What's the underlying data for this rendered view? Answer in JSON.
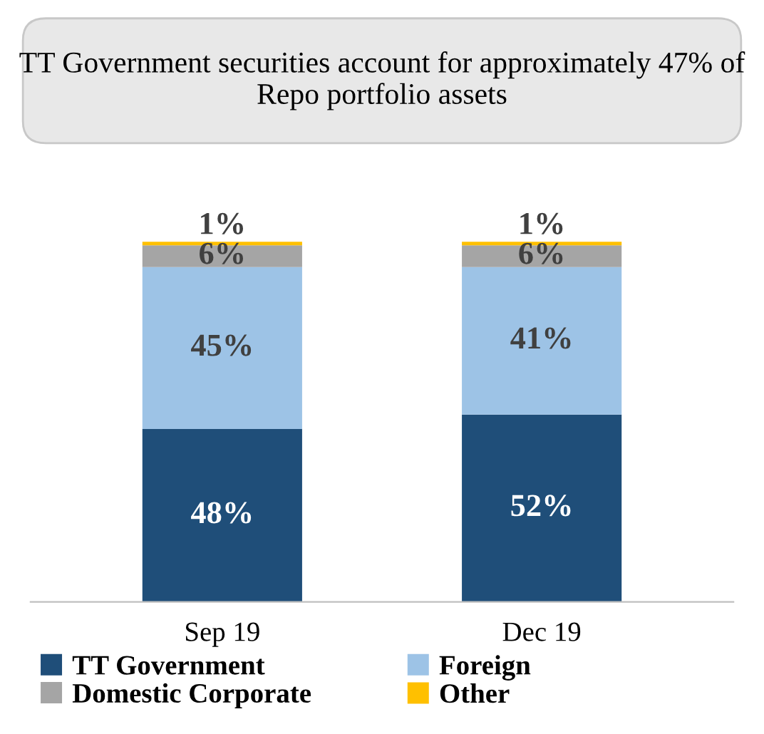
{
  "chart_data": {
    "type": "bar",
    "title": "TT Government securities account for approximately 47% of Repo portfolio assets",
    "categories": [
      "Sep 19",
      "Dec 19"
    ],
    "stacked": true,
    "legend": "bottom",
    "tick_labels": "x",
    "grid": false,
    "series": [
      {
        "name": "TT Government",
        "color": "#1f4e79",
        "values": [
          48,
          52
        ],
        "value_labels": [
          "48%",
          "52%"
        ]
      },
      {
        "name": "Foreign",
        "color": "#9dc3e6",
        "values": [
          45,
          41
        ],
        "value_labels": [
          "45%",
          "41%"
        ]
      },
      {
        "name": "Domestic Corporate",
        "color": "#a5a5a5",
        "values": [
          6,
          6
        ],
        "value_labels": [
          "6%",
          "6%"
        ]
      },
      {
        "name": "Other",
        "color": "#ffc000",
        "values": [
          1,
          1
        ],
        "value_labels": [
          "1%",
          "1%"
        ]
      }
    ]
  }
}
